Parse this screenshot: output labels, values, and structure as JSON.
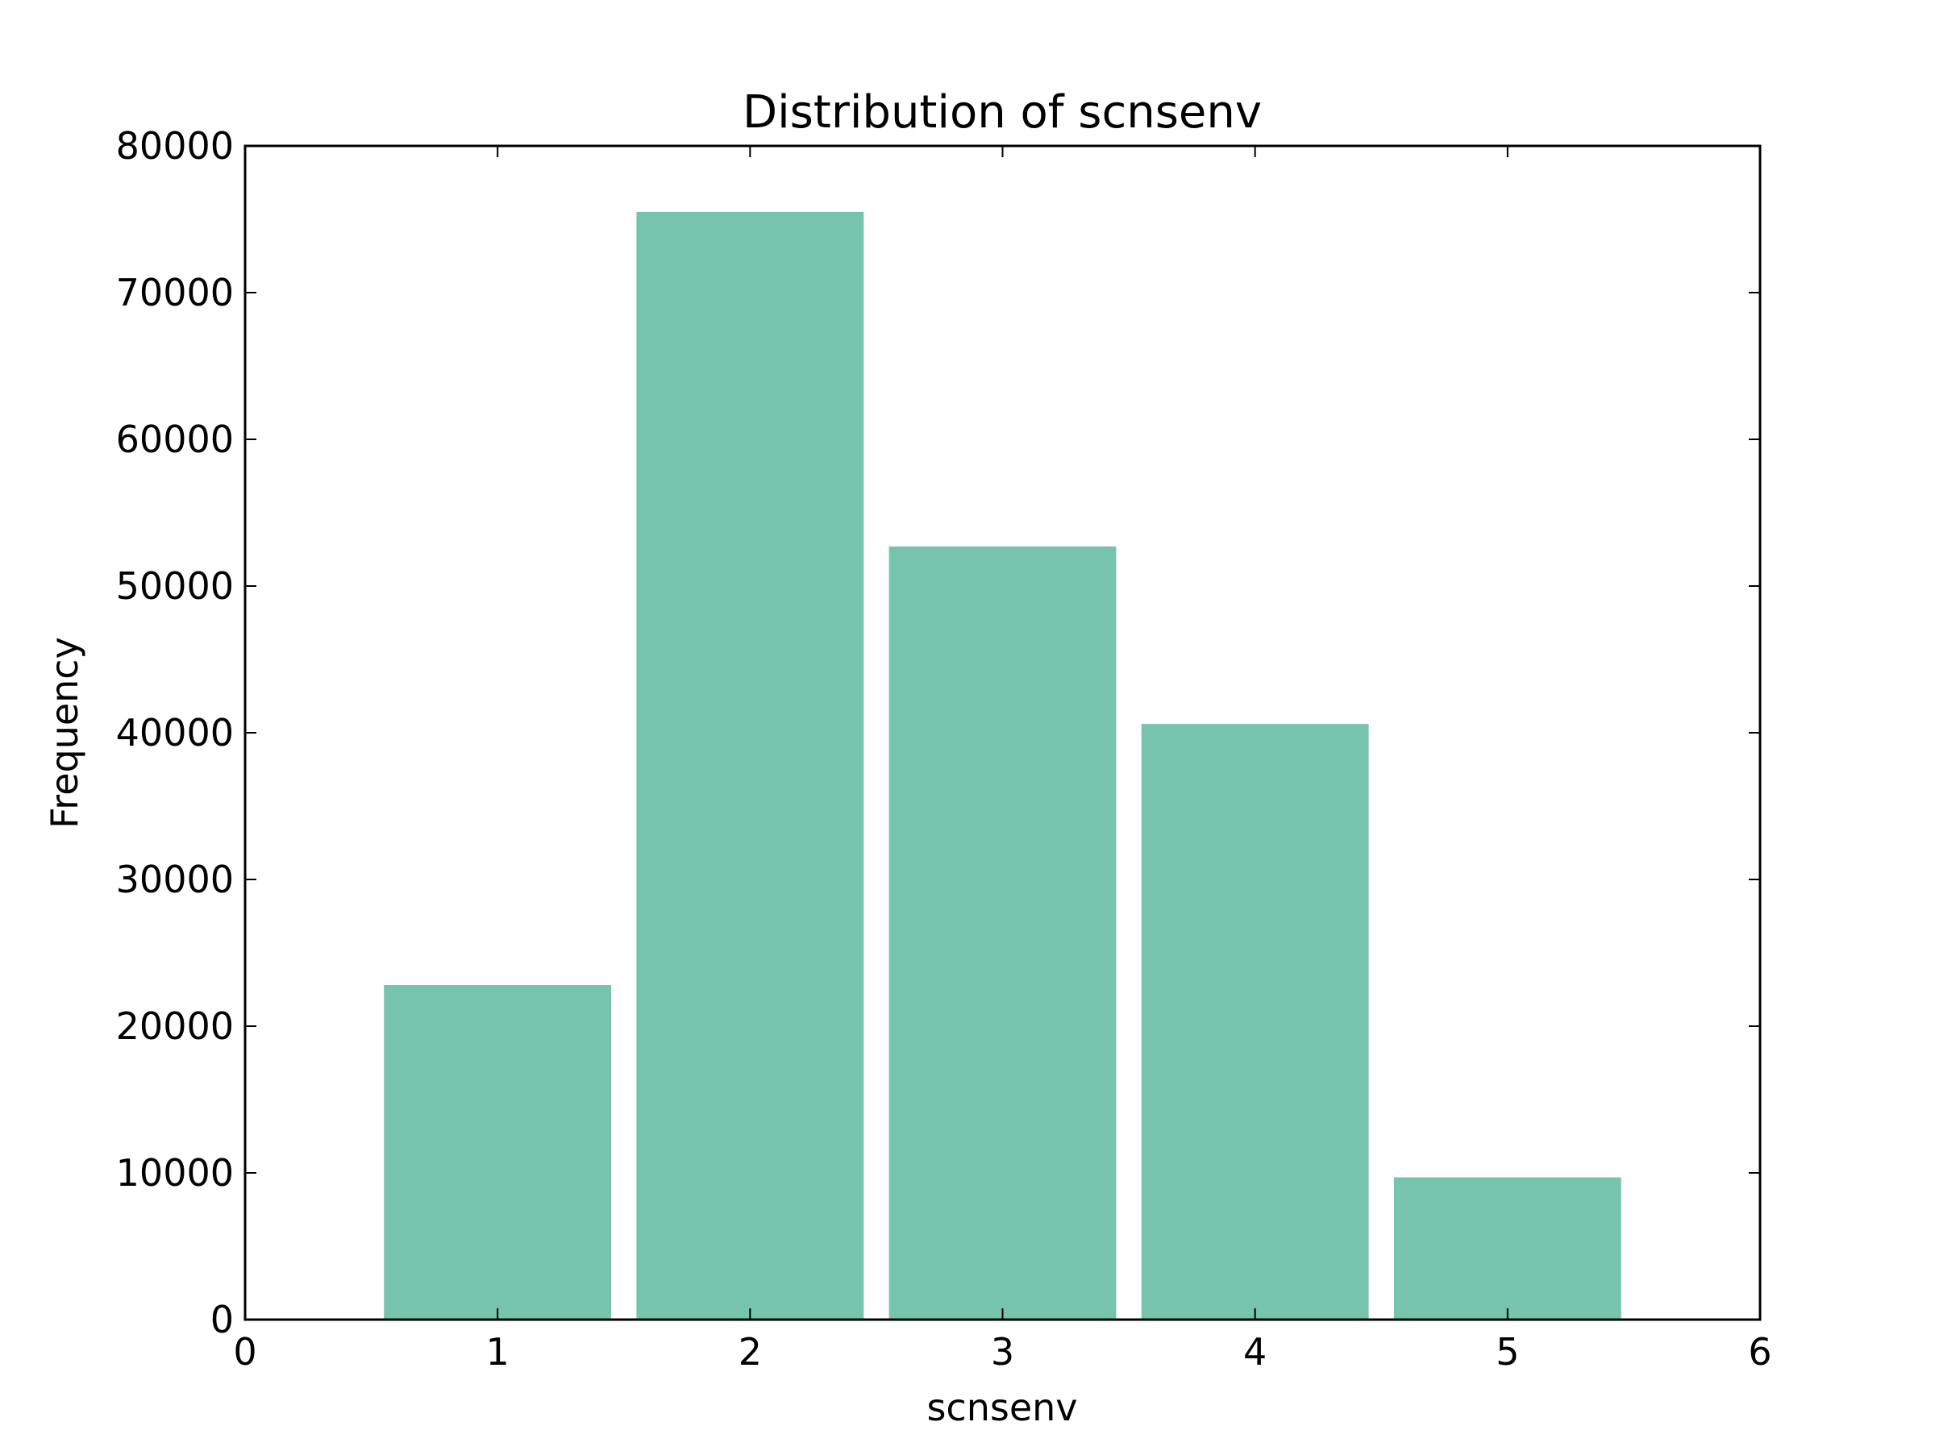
{
  "chart_data": {
    "type": "bar",
    "title": "Distribution of scnsenv",
    "xlabel": "scnsenv",
    "ylabel": "Frequency",
    "categories": [
      1,
      2,
      3,
      4,
      5
    ],
    "values": [
      22800,
      75500,
      52700,
      40600,
      9700
    ],
    "bar_width": 0.9,
    "xlim": [
      0,
      6
    ],
    "ylim": [
      0,
      80000
    ],
    "xticks": [
      "0",
      "1",
      "2",
      "3",
      "4",
      "5",
      "6"
    ],
    "yticks": [
      "0",
      "10000",
      "20000",
      "30000",
      "40000",
      "50000",
      "60000",
      "70000",
      "80000"
    ],
    "bar_color": "#77c4ad",
    "grid": false,
    "legend": "none"
  }
}
